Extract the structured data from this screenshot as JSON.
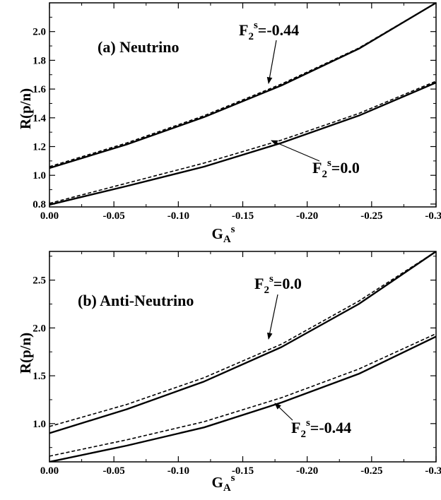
{
  "chart_data": [
    {
      "type": "line",
      "title": "(a) Neutrino",
      "xlabel": "G_A^s",
      "ylabel": "R(p/n)",
      "xlim": [
        0.0,
        -0.3
      ],
      "ylim": [
        0.78,
        2.2
      ],
      "grid": false,
      "x": [
        0.0,
        -0.06,
        -0.12,
        -0.18,
        -0.24,
        -0.3
      ],
      "xticks": [
        0.0,
        -0.05,
        -0.1,
        -0.15,
        -0.2,
        -0.25,
        -0.3
      ],
      "xtick_labels": [
        "0.00",
        "-0.05",
        "-0.10",
        "-0.15",
        "-0.20",
        "-0.25",
        "-0.30"
      ],
      "yticks": [
        0.8,
        1.0,
        1.2,
        1.4,
        1.6,
        1.8,
        2.0
      ],
      "ytick_labels": [
        "0.8",
        "1.0",
        "1.2",
        "1.4",
        "1.6",
        "1.8",
        "2.0"
      ],
      "series": [
        {
          "style": "solid",
          "values": [
            1.05,
            1.215,
            1.405,
            1.625,
            1.88,
            2.2
          ]
        },
        {
          "style": "dashed",
          "values": [
            1.06,
            1.225,
            1.415,
            1.635,
            1.885,
            2.2
          ]
        },
        {
          "style": "solid",
          "values": [
            0.795,
            0.925,
            1.06,
            1.225,
            1.415,
            1.645
          ]
        },
        {
          "style": "dashed",
          "values": [
            0.805,
            0.945,
            1.085,
            1.245,
            1.43,
            1.655
          ]
        }
      ],
      "annotations": [
        {
          "base": "F",
          "sub": "2",
          "sup": "s",
          "value": "=-0.44"
        },
        {
          "base": "F",
          "sub": "2",
          "sup": "s",
          "value": "=0.0"
        }
      ]
    },
    {
      "type": "line",
      "title": "(b) Anti-Neutrino",
      "xlabel": "G_A^s",
      "ylabel": "R(p/n)",
      "xlim": [
        0.0,
        -0.3
      ],
      "ylim": [
        0.6,
        2.8
      ],
      "grid": false,
      "x": [
        0.0,
        -0.06,
        -0.12,
        -0.18,
        -0.24,
        -0.3
      ],
      "xticks": [
        0.0,
        -0.05,
        -0.1,
        -0.15,
        -0.2,
        -0.25,
        -0.3
      ],
      "xtick_labels": [
        "0.00",
        "-0.05",
        "-0.10",
        "-0.15",
        "-0.20",
        "-0.25",
        "-0.30"
      ],
      "yticks": [
        1.0,
        1.5,
        2.0,
        2.5
      ],
      "ytick_labels": [
        "1.0",
        "1.5",
        "2.0",
        "2.5"
      ],
      "series": [
        {
          "style": "solid",
          "values": [
            0.9,
            1.15,
            1.44,
            1.8,
            2.25,
            2.8
          ]
        },
        {
          "style": "dashed",
          "values": [
            0.97,
            1.2,
            1.48,
            1.83,
            2.28,
            2.8
          ]
        },
        {
          "style": "solid",
          "values": [
            0.6,
            0.77,
            0.96,
            1.22,
            1.52,
            1.91
          ]
        },
        {
          "style": "dashed",
          "values": [
            0.66,
            0.83,
            1.02,
            1.27,
            1.57,
            1.94
          ]
        }
      ],
      "annotations": [
        {
          "base": "F",
          "sub": "2",
          "sup": "s",
          "value": "=0.0"
        },
        {
          "base": "F",
          "sub": "2",
          "sup": "s",
          "value": "=-0.44"
        }
      ]
    }
  ]
}
